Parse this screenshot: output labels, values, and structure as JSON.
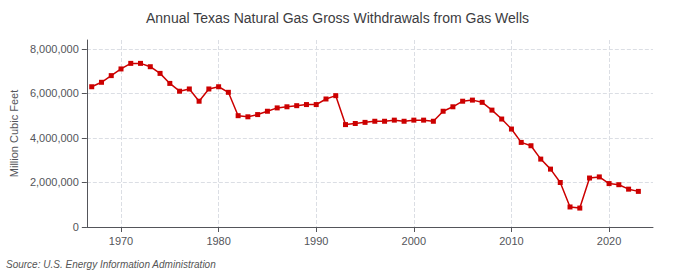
{
  "chart_data": {
    "type": "line",
    "title": "Annual Texas Natural Gas Gross Withdrawals from Gas Wells",
    "ylabel": "Million Cubic Feet",
    "annotation": "Source: U.S. Energy Information Administration",
    "color": "#cc0000",
    "marker": "square",
    "grid": true,
    "xlim": [
      1966.5,
      2024.5
    ],
    "xticks": [
      1970,
      1980,
      1990,
      2000,
      2010,
      2020
    ],
    "ylim": [
      0,
      8400000
    ],
    "yticks": [
      0,
      {
        "value": 2000000,
        "label": "2,000,000"
      },
      {
        "value": 4000000,
        "label": "4,000,000"
      },
      {
        "value": 6000000,
        "label": "6,000,000"
      },
      {
        "value": 8000000,
        "label": "8,000,000"
      }
    ],
    "x": [
      1967,
      1968,
      1969,
      1970,
      1971,
      1972,
      1973,
      1974,
      1975,
      1976,
      1977,
      1978,
      1979,
      1980,
      1981,
      1982,
      1983,
      1984,
      1985,
      1986,
      1987,
      1988,
      1989,
      1990,
      1991,
      1992,
      1993,
      1994,
      1995,
      1996,
      1997,
      1998,
      1999,
      2000,
      2001,
      2002,
      2003,
      2004,
      2005,
      2006,
      2007,
      2008,
      2009,
      2010,
      2011,
      2012,
      2013,
      2014,
      2015,
      2016,
      2017,
      2018,
      2019,
      2020,
      2021,
      2022,
      2023
    ],
    "values": [
      6300000,
      6500000,
      6800000,
      7100000,
      7350000,
      7350000,
      7200000,
      6900000,
      6450000,
      6100000,
      6200000,
      5650000,
      6200000,
      6300000,
      6050000,
      5000000,
      4950000,
      5050000,
      5200000,
      5350000,
      5400000,
      5450000,
      5500000,
      5500000,
      5750000,
      5900000,
      4600000,
      4650000,
      4700000,
      4750000,
      4750000,
      4800000,
      4750000,
      4800000,
      4800000,
      4750000,
      5200000,
      5400000,
      5650000,
      5700000,
      5600000,
      5250000,
      4850000,
      4400000,
      3800000,
      3650000,
      3050000,
      2600000,
      2000000,
      900000,
      850000,
      2200000,
      2250000,
      1950000,
      1900000,
      1700000,
      1600000
    ]
  }
}
